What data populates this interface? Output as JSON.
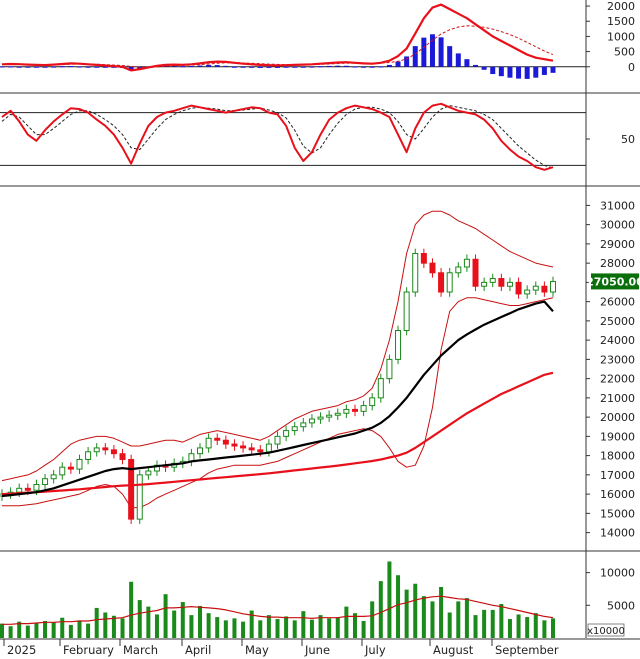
{
  "chart_data": [
    {
      "panel": "macd",
      "type": "line",
      "y_ticks": [
        "2000",
        "1500",
        "1000",
        "500",
        "0"
      ],
      "ylim": [
        -700,
        2200
      ],
      "colors": {
        "macd": "#e8101a",
        "signal": "#d01515",
        "hist_pos": "#1a1ad8",
        "hist_neg": "#1a1ad8"
      },
      "series": [
        {
          "id": "macd",
          "values": [
            80,
            90,
            85,
            70,
            60,
            55,
            70,
            90,
            110,
            100,
            80,
            60,
            40,
            20,
            0,
            -120,
            -80,
            -20,
            30,
            60,
            70,
            65,
            80,
            110,
            150,
            170,
            160,
            130,
            100,
            80,
            60,
            50,
            40,
            50,
            60,
            70,
            80,
            100,
            120,
            140,
            150,
            130,
            110,
            100,
            130,
            200,
            350,
            600,
            1100,
            1600,
            1950,
            2050,
            1900,
            1750,
            1600,
            1400,
            1200,
            1000,
            850,
            700,
            550,
            400,
            300,
            250,
            200
          ]
        },
        {
          "id": "signal",
          "values": [
            70,
            80,
            85,
            80,
            72,
            65,
            66,
            72,
            85,
            92,
            90,
            82,
            70,
            55,
            40,
            10,
            -20,
            -20,
            -5,
            15,
            35,
            45,
            55,
            70,
            90,
            115,
            130,
            130,
            125,
            115,
            100,
            88,
            78,
            72,
            70,
            72,
            75,
            82,
            92,
            105,
            118,
            122,
            122,
            118,
            120,
            140,
            180,
            260,
            420,
            640,
            880,
            1080,
            1220,
            1310,
            1350,
            1340,
            1300,
            1240,
            1160,
            1060,
            940,
            800,
            660,
            520,
            400
          ]
        },
        {
          "id": "histogram",
          "values": [
            10,
            10,
            0,
            -10,
            -12,
            -10,
            4,
            18,
            25,
            8,
            -10,
            -22,
            -30,
            -35,
            -40,
            -130,
            -60,
            0,
            35,
            45,
            35,
            20,
            25,
            40,
            60,
            55,
            30,
            0,
            -25,
            -35,
            -40,
            -38,
            -38,
            -22,
            -10,
            -2,
            5,
            18,
            28,
            35,
            32,
            8,
            -12,
            -18,
            10,
            60,
            170,
            340,
            680,
            960,
            1070,
            970,
            680,
            440,
            250,
            60,
            -100,
            -240,
            -310,
            -360,
            -390,
            -400,
            -360,
            -270,
            -200
          ]
        }
      ]
    },
    {
      "panel": "stochastic",
      "type": "line",
      "y_ticks": [
        "50"
      ],
      "ylim": [
        0,
        100
      ],
      "reference_lines": [
        80,
        20
      ],
      "colors": {
        "k": "#e8101a",
        "d": "#222222"
      },
      "series": [
        {
          "id": "k",
          "values": [
            75,
            82,
            70,
            55,
            48,
            60,
            70,
            78,
            85,
            84,
            80,
            72,
            65,
            55,
            40,
            22,
            45,
            65,
            75,
            80,
            82,
            85,
            88,
            86,
            84,
            82,
            80,
            82,
            84,
            86,
            85,
            80,
            78,
            65,
            40,
            25,
            35,
            55,
            72,
            80,
            85,
            88,
            86,
            84,
            80,
            75,
            55,
            35,
            62,
            80,
            88,
            90,
            86,
            82,
            80,
            78,
            72,
            62,
            48,
            38,
            30,
            25,
            18,
            15,
            18
          ]
        },
        {
          "id": "d",
          "values": [
            70,
            78,
            75,
            65,
            55,
            55,
            62,
            70,
            78,
            82,
            82,
            78,
            72,
            65,
            55,
            40,
            38,
            50,
            62,
            72,
            78,
            82,
            85,
            86,
            85,
            84,
            82,
            82,
            83,
            84,
            85,
            83,
            80,
            74,
            60,
            42,
            34,
            40,
            55,
            68,
            78,
            84,
            86,
            86,
            84,
            80,
            70,
            55,
            50,
            62,
            75,
            84,
            88,
            86,
            84,
            82,
            78,
            72,
            62,
            52,
            42,
            34,
            26,
            20,
            17
          ]
        }
      ]
    },
    {
      "panel": "price",
      "type": "line",
      "y_ticks": [
        "31000",
        "30000",
        "29000",
        "28000",
        "27000",
        "26000",
        "25000",
        "24000",
        "23000",
        "22000",
        "21000",
        "20000",
        "19000",
        "18000",
        "17000",
        "16000",
        "15000",
        "14000"
      ],
      "ylim": [
        13200,
        31800
      ],
      "last_price_label": "27050.00",
      "colors": {
        "up": "#1a8a1a",
        "down": "#e8101a",
        "ma_fast": "#000000",
        "ma_slow": "#e8101a",
        "bands": "#c81010",
        "price_tag": "#0a6e0a"
      },
      "series": [
        {
          "id": "close",
          "values": [
            16000,
            16100,
            16300,
            16200,
            16500,
            16800,
            17000,
            17400,
            17300,
            17800,
            18200,
            18400,
            18300,
            18100,
            17800,
            14700,
            17000,
            17200,
            17500,
            17400,
            17600,
            17700,
            18100,
            18400,
            18900,
            18800,
            18600,
            18500,
            18400,
            18300,
            18200,
            18600,
            19000,
            19300,
            19500,
            19700,
            19900,
            20000,
            20100,
            20200,
            20400,
            20300,
            20600,
            21000,
            22000,
            23000,
            24500,
            26500,
            28500,
            28000,
            27500,
            26500,
            27500,
            27800,
            28200,
            26800,
            27000,
            27200,
            26800,
            27000,
            26400,
            26600,
            26800,
            26500,
            27050
          ]
        },
        {
          "id": "ma_fast",
          "values": [
            15900,
            15950,
            16000,
            16050,
            16100,
            16200,
            16300,
            16450,
            16600,
            16750,
            16900,
            17050,
            17200,
            17300,
            17350,
            17300,
            17350,
            17400,
            17450,
            17500,
            17550,
            17600,
            17700,
            17750,
            17800,
            17850,
            17900,
            17950,
            18000,
            18050,
            18100,
            18150,
            18250,
            18350,
            18450,
            18550,
            18650,
            18750,
            18850,
            18950,
            19050,
            19150,
            19300,
            19450,
            19700,
            20050,
            20500,
            21000,
            21600,
            22200,
            22700,
            23200,
            23600,
            24000,
            24300,
            24550,
            24800,
            25000,
            25200,
            25400,
            25600,
            25750,
            25900,
            26000,
            25500
          ]
        },
        {
          "id": "ma_slow",
          "values": [
            16000,
            16020,
            16050,
            16080,
            16100,
            16130,
            16160,
            16190,
            16220,
            16250,
            16290,
            16330,
            16370,
            16410,
            16440,
            16460,
            16490,
            16520,
            16560,
            16600,
            16640,
            16680,
            16720,
            16760,
            16800,
            16840,
            16880,
            16920,
            16960,
            17000,
            17040,
            17080,
            17130,
            17180,
            17230,
            17280,
            17330,
            17380,
            17430,
            17480,
            17540,
            17600,
            17660,
            17720,
            17800,
            17900,
            18000,
            18150,
            18400,
            18700,
            19000,
            19300,
            19600,
            19900,
            20200,
            20450,
            20700,
            20950,
            21200,
            21400,
            21600,
            21800,
            22000,
            22200,
            22300
          ]
        },
        {
          "id": "band_upper",
          "values": [
            16700,
            16800,
            16900,
            17000,
            17200,
            17500,
            17800,
            18200,
            18600,
            18800,
            18900,
            19000,
            19000,
            18900,
            18700,
            18500,
            18500,
            18600,
            18700,
            18800,
            18800,
            18700,
            18900,
            19100,
            19200,
            19300,
            19200,
            19100,
            19000,
            18900,
            18800,
            19000,
            19300,
            19600,
            19900,
            20100,
            20300,
            20400,
            20500,
            20600,
            20800,
            20900,
            21100,
            21500,
            22500,
            24000,
            26000,
            28500,
            30000,
            30500,
            30700,
            30700,
            30500,
            30200,
            30000,
            29800,
            29500,
            29200,
            28900,
            28600,
            28400,
            28200,
            28000,
            27900,
            27800
          ]
        },
        {
          "id": "band_lower",
          "values": [
            15400,
            15400,
            15400,
            15450,
            15500,
            15600,
            15700,
            15800,
            15900,
            16000,
            16200,
            16400,
            16500,
            16400,
            16000,
            15300,
            15300,
            15500,
            15800,
            16000,
            16200,
            16400,
            16600,
            16800,
            17100,
            17300,
            17400,
            17500,
            17500,
            17500,
            17500,
            17600,
            17700,
            17900,
            18100,
            18300,
            18500,
            18700,
            18900,
            19100,
            19200,
            19300,
            19400,
            19300,
            19000,
            18400,
            17700,
            17400,
            17500,
            18500,
            20500,
            23500,
            25500,
            26000,
            26200,
            26200,
            26100,
            26000,
            25900,
            25800,
            25800,
            25900,
            26000,
            26100,
            26200
          ]
        }
      ]
    },
    {
      "panel": "volume",
      "type": "bar",
      "y_ticks": [
        "10000",
        "5000"
      ],
      "ylim": [
        0,
        13000
      ],
      "unit_label": "x10000",
      "colors": {
        "bars": "#1a8a1a",
        "ma": "#c81010"
      },
      "series": [
        {
          "id": "volume",
          "values": [
            2200,
            1800,
            2500,
            1900,
            2300,
            2600,
            2400,
            3100,
            2000,
            2700,
            2200,
            4600,
            3900,
            3400,
            3000,
            8600,
            5800,
            4800,
            3600,
            6700,
            4200,
            5500,
            3500,
            4900,
            3800,
            3200,
            2700,
            3000,
            2500,
            4200,
            2700,
            3500,
            2900,
            3300,
            2700,
            4100,
            2800,
            3500,
            3000,
            3200,
            4800,
            3800,
            2600,
            5600,
            8700,
            11700,
            9600,
            7400,
            8300,
            6400,
            5600,
            7800,
            3900,
            5600,
            6100,
            3500,
            4300,
            4300,
            5200,
            2900,
            3600,
            3200,
            3800,
            2700,
            3000
          ]
        },
        {
          "id": "volume_ma",
          "values": [
            2100,
            2100,
            2200,
            2200,
            2300,
            2400,
            2400,
            2500,
            2500,
            2600,
            2600,
            2800,
            2900,
            3000,
            3100,
            3500,
            3800,
            4000,
            4200,
            4600,
            4600,
            4700,
            4800,
            4700,
            4600,
            4500,
            4300,
            4000,
            3700,
            3500,
            3300,
            3200,
            3200,
            3100,
            3100,
            3100,
            3000,
            3100,
            3100,
            3100,
            3300,
            3300,
            3300,
            3400,
            3900,
            4500,
            5100,
            5400,
            5800,
            6100,
            6300,
            6400,
            6200,
            6000,
            5900,
            5600,
            5300,
            5000,
            4800,
            4500,
            4200,
            3900,
            3600,
            3300,
            3100
          ]
        }
      ]
    },
    {
      "panel": "time_axis",
      "type": "table",
      "x_ticks": [
        "2025",
        "February",
        "March",
        "April",
        "May",
        "June",
        "July",
        "August",
        "September"
      ]
    }
  ]
}
